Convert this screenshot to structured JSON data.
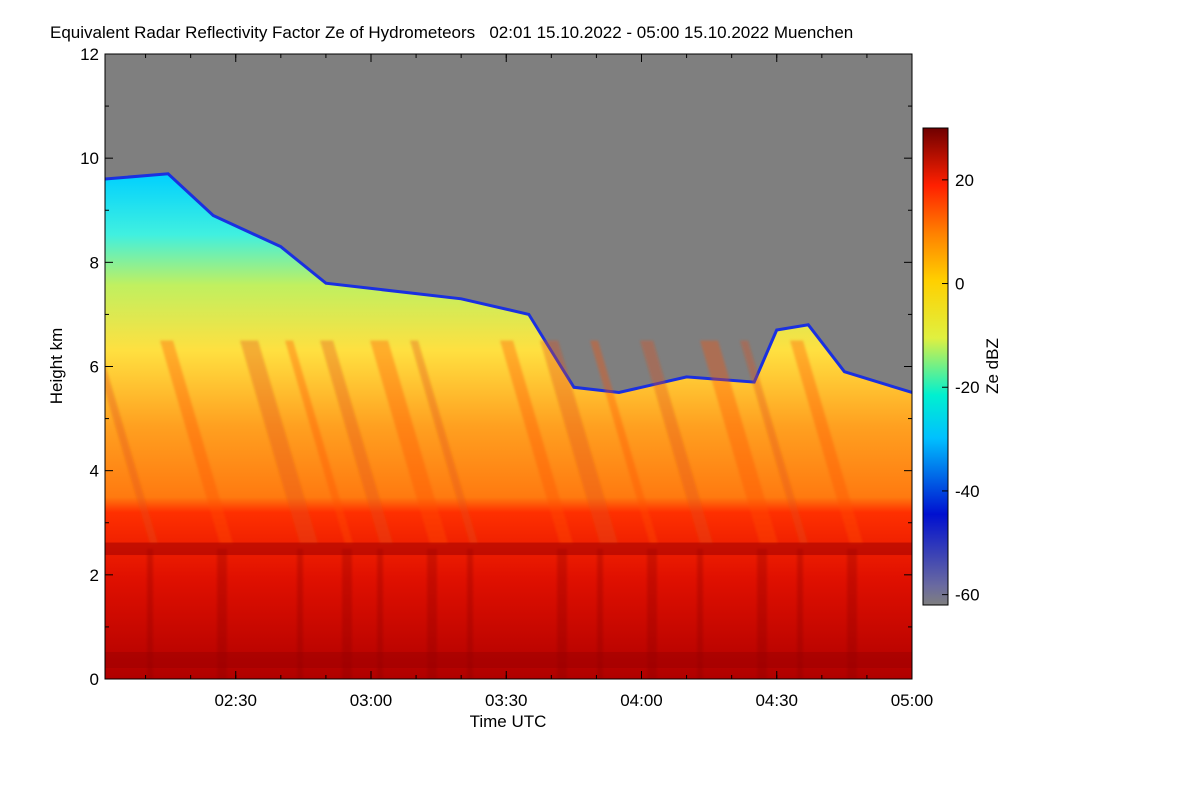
{
  "chart_data": {
    "type": "heatmap",
    "title": "Equivalent Radar Reflectivity Factor Ze of Hydrometeors   02:01 15.10.2022 - 05:00 15.10.2022 Muenchen",
    "xlabel": "Time UTC",
    "ylabel": "Height km",
    "x_range": [
      "02:01",
      "05:00"
    ],
    "x_ticks": [
      "02:30",
      "03:00",
      "03:30",
      "04:00",
      "04:30",
      "05:00"
    ],
    "ylim": [
      0,
      12
    ],
    "y_ticks": [
      "0",
      "2",
      "4",
      "6",
      "8",
      "10",
      "12"
    ],
    "colorbar": {
      "label": "Ze dBZ",
      "range": [
        -62,
        30
      ],
      "ticks": [
        "-60",
        "-40",
        "-20",
        "0",
        "20"
      ],
      "colors": [
        "#7f7f7f",
        "#0010d0",
        "#00c0ff",
        "#00f0e0",
        "#e8f040",
        "#ffd000",
        "#ff8000",
        "#ff2000",
        "#7a0000"
      ]
    },
    "missing_value_color": "#7f7f7f",
    "echo_top_km": [
      {
        "time": "02:01",
        "height": 9.6
      },
      {
        "time": "02:15",
        "height": 9.7
      },
      {
        "time": "02:25",
        "height": 8.9
      },
      {
        "time": "02:40",
        "height": 8.3
      },
      {
        "time": "02:50",
        "height": 7.6
      },
      {
        "time": "03:00",
        "height": 7.5
      },
      {
        "time": "03:20",
        "height": 7.3
      },
      {
        "time": "03:35",
        "height": 7.0
      },
      {
        "time": "03:40",
        "height": 6.3
      },
      {
        "time": "03:45",
        "height": 5.6
      },
      {
        "time": "03:55",
        "height": 5.5
      },
      {
        "time": "04:00",
        "height": 5.6
      },
      {
        "time": "04:10",
        "height": 5.8
      },
      {
        "time": "04:25",
        "height": 5.7
      },
      {
        "time": "04:30",
        "height": 6.7
      },
      {
        "time": "04:37",
        "height": 6.8
      },
      {
        "time": "04:45",
        "height": 5.9
      },
      {
        "time": "05:00",
        "height": 5.5
      }
    ],
    "melting_layer_km": 2.5,
    "grid": false
  }
}
